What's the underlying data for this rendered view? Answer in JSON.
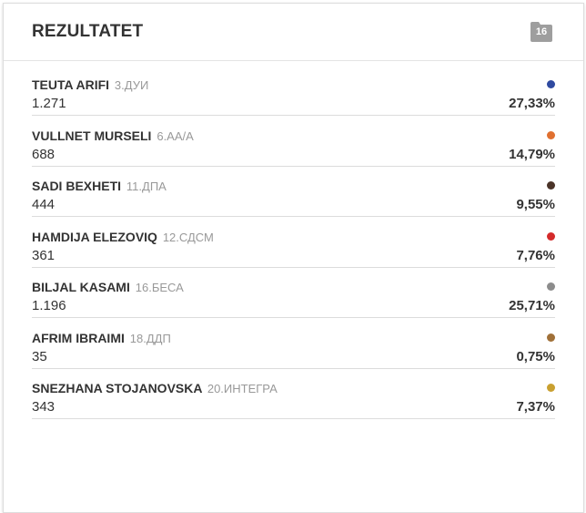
{
  "header": {
    "title": "REZULTATET",
    "badge_icon": "folder-icon",
    "badge_count": "16",
    "badge_color": "#9e9e9e"
  },
  "results": [
    {
      "name": "TEUTA ARIFI",
      "party": "3.ДУИ",
      "votes": "1.271",
      "percent": "27,33%",
      "color": "#2f4aa0"
    },
    {
      "name": "VULLNET MURSELI",
      "party": "6.АА/А",
      "votes": "688",
      "percent": "14,79%",
      "color": "#e07030"
    },
    {
      "name": "SADI BEXHETI",
      "party": "11.ДПА",
      "votes": "444",
      "percent": "9,55%",
      "color": "#4a3328"
    },
    {
      "name": "HAMDIJA ELEZOVIQ",
      "party": "12.СДСМ",
      "votes": "361",
      "percent": "7,76%",
      "color": "#d42a2a"
    },
    {
      "name": "BILJAL KASAMI",
      "party": "16.БЕСА",
      "votes": "1.196",
      "percent": "25,71%",
      "color": "#8c8c8c"
    },
    {
      "name": "AFRIM IBRAIMI",
      "party": "18.ДДП",
      "votes": "35",
      "percent": "0,75%",
      "color": "#a07038"
    },
    {
      "name": "SNEZHANA STOJANOVSKA",
      "party": "20.ИНТЕГРА",
      "votes": "343",
      "percent": "7,37%",
      "color": "#c9a030"
    }
  ]
}
